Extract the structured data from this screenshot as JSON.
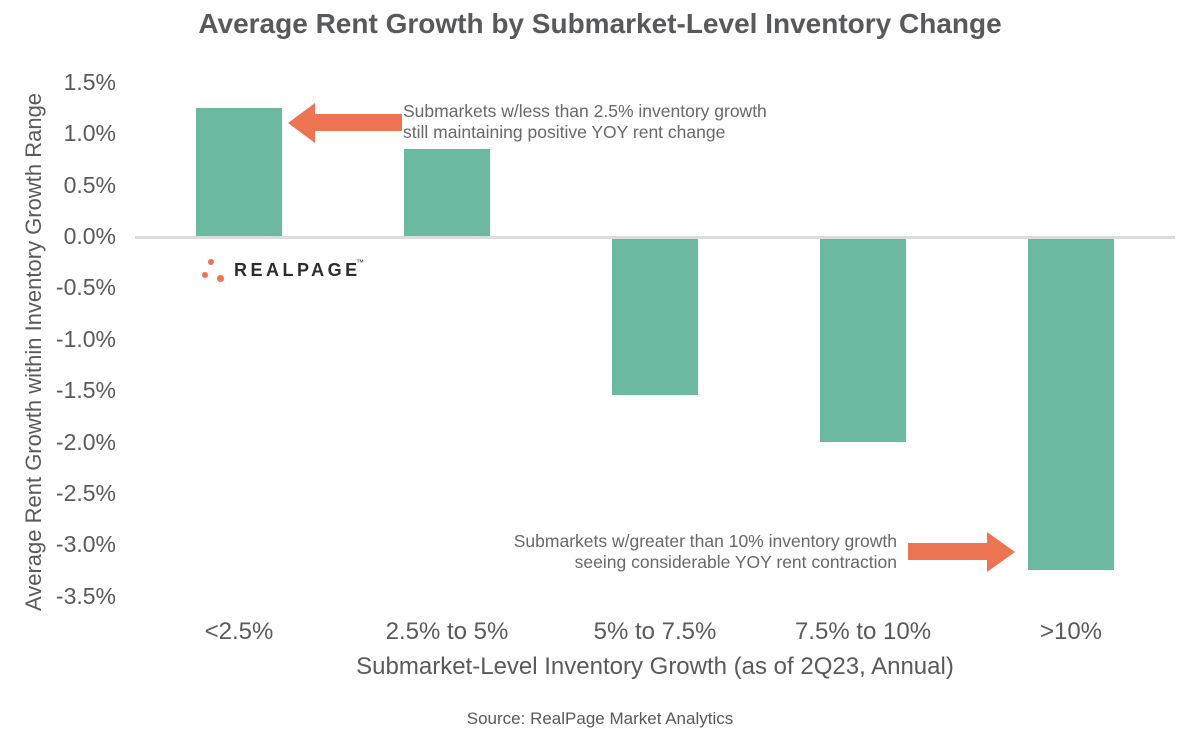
{
  "title": "Average Rent Growth by Submarket-Level Inventory Change",
  "y_axis": {
    "title": "Average Rent Growth within Inventory Growth Range",
    "ticks": [
      {
        "label": "1.5%",
        "value": 1.5
      },
      {
        "label": "1.0%",
        "value": 1.0
      },
      {
        "label": "0.5%",
        "value": 0.5
      },
      {
        "label": "0.0%",
        "value": 0.0
      },
      {
        "label": "-0.5%",
        "value": -0.5
      },
      {
        "label": "-1.0%",
        "value": -1.0
      },
      {
        "label": "-1.5%",
        "value": -1.5
      },
      {
        "label": "-2.0%",
        "value": -2.0
      },
      {
        "label": "-2.5%",
        "value": -2.5
      },
      {
        "label": "-3.0%",
        "value": -3.0
      },
      {
        "label": "-3.5%",
        "value": -3.5
      }
    ]
  },
  "x_axis": {
    "title": "Submarket-Level Inventory Growth (as of 2Q23, Annual)"
  },
  "annotations": [
    {
      "text": "Submarkets w/less than 2.5% inventory growth\nstill maintaining positive YOY rent change",
      "direction": "left",
      "points_to": "<2.5%"
    },
    {
      "text": "Submarkets w/greater than 10% inventory growth\nseeing considerable YOY rent contraction",
      "direction": "right",
      "points_to": ">10%"
    }
  ],
  "source": "Source: RealPage Market Analytics",
  "logo": {
    "text": "REALPAGE",
    "tm": "™"
  },
  "colors": {
    "bar": "#6bb9a0",
    "arrow": "#ec7452",
    "title_text": "#58595b",
    "axis_text": "#5a5a5a",
    "annotation_text": "#686868",
    "zero_line": "#dcdcdc"
  },
  "chart_data": {
    "type": "bar",
    "categories": [
      "<2.5%",
      "2.5% to 5%",
      "5% to 7.5%",
      "7.5% to 10%",
      ">10%"
    ],
    "values": [
      1.25,
      0.85,
      -1.55,
      -2.0,
      -3.25
    ],
    "title": "Average Rent Growth by Submarket-Level Inventory Change",
    "xlabel": "Submarket-Level Inventory Growth (as of 2Q23, Annual)",
    "ylabel": "Average Rent Growth within Inventory Growth Range",
    "ylim": [
      -3.5,
      1.5
    ],
    "ytick_step": 0.5,
    "unit": "%",
    "grid": false,
    "legend": false
  }
}
